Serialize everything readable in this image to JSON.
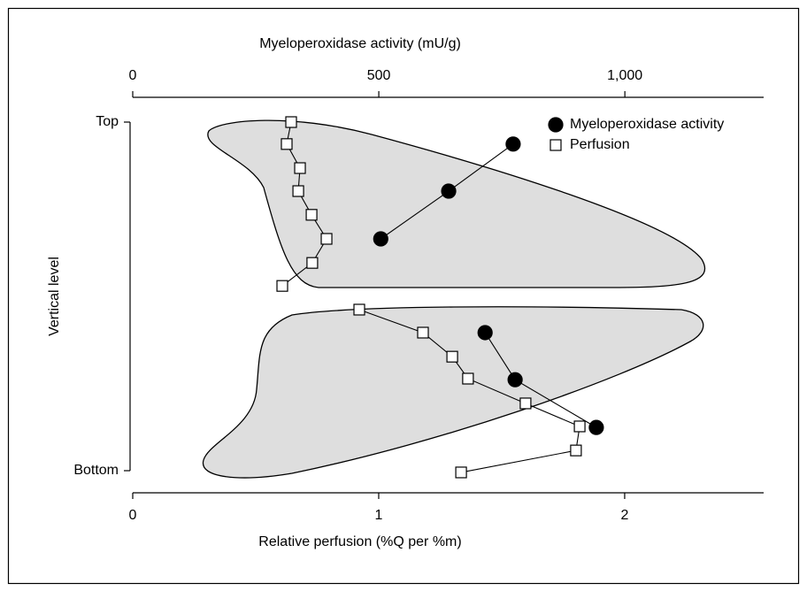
{
  "chart_data": {
    "type": "scatter",
    "xlabel": "Relative perfusion (%Q per %m)",
    "x2label": "Myeloperoxidase activity (mU/g)",
    "ylabel": "Vertical level",
    "xlim": [
      0,
      2.565
    ],
    "xticks": [
      0,
      1,
      2
    ],
    "x2lim": [
      0,
      1282
    ],
    "x2ticks": [
      0,
      500,
      {
        "value": 1000,
        "label": "1,000"
      }
    ],
    "ylim": [
      0,
      1
    ],
    "yticks": [
      {
        "value": 1,
        "label": "Top"
      },
      {
        "value": 0,
        "label": "Bottom"
      }
    ],
    "grid": false,
    "legend": "upper right",
    "series": [
      {
        "name": "Myeloperoxidase activity",
        "color": "#000000",
        "marker": "circle",
        "axis": "x2",
        "x": [
          773,
          642,
          504,
          null,
          716,
          777,
          942
        ],
        "values": [
          0.937,
          0.802,
          0.665,
          null,
          0.396,
          0.261,
          0.124
        ]
      },
      {
        "name": "Perfusion",
        "color": "#ffffff",
        "marker": "square",
        "axis": "x",
        "x": [
          0.644,
          0.626,
          0.68,
          0.673,
          0.727,
          0.788,
          0.73,
          0.608,
          null,
          0.921,
          1.18,
          1.299,
          1.363,
          1.597,
          1.817,
          1.802,
          1.335
        ],
        "values": [
          1.0,
          0.937,
          0.868,
          0.802,
          0.734,
          0.665,
          0.596,
          0.53,
          null,
          0.462,
          0.396,
          0.327,
          0.264,
          0.193,
          0.127,
          0.058,
          -0.005
        ]
      }
    ]
  }
}
